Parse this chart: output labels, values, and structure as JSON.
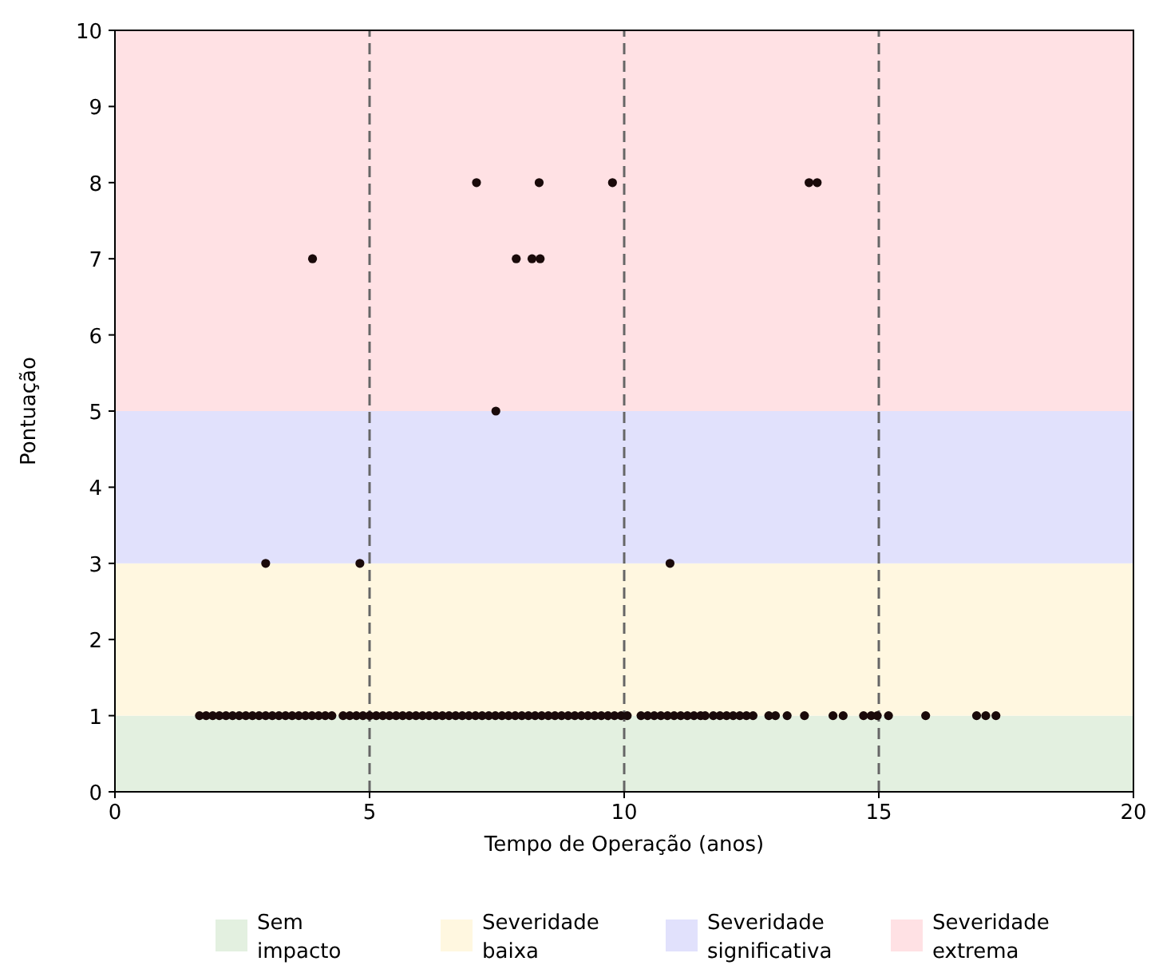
{
  "chart_data": {
    "type": "scatter",
    "xlabel": "Tempo de Operação (anos)",
    "ylabel": "Pontuação",
    "xlim": [
      0,
      20
    ],
    "xticks": [
      0,
      5,
      10,
      15,
      20
    ],
    "ylim": [
      0,
      10
    ],
    "yticks": [
      0,
      1,
      2,
      3,
      4,
      5,
      6,
      7,
      8,
      9,
      10
    ],
    "series": [
      {
        "color": "#1a0a0a",
        "x": [
          7.1,
          8.33,
          9.77,
          13.63,
          13.79,
          3.88,
          7.88,
          8.19,
          8.35,
          7.48,
          2.96,
          4.81,
          10.9,
          1.66,
          1.79,
          1.92,
          2.05,
          2.18,
          2.31,
          2.44,
          2.57,
          2.7,
          2.83,
          2.96,
          3.09,
          3.22,
          3.35,
          3.48,
          3.61,
          3.74,
          3.87,
          4.0,
          4.13,
          4.26,
          4.48,
          4.61,
          4.74,
          4.87,
          5.0,
          5.13,
          5.26,
          5.39,
          5.52,
          5.65,
          5.78,
          5.91,
          6.04,
          6.17,
          6.3,
          6.43,
          6.56,
          6.69,
          6.82,
          6.95,
          7.08,
          7.21,
          7.34,
          7.47,
          7.6,
          7.73,
          7.86,
          7.99,
          8.12,
          8.25,
          8.38,
          8.51,
          8.64,
          8.77,
          8.9,
          9.03,
          9.16,
          9.29,
          9.42,
          9.55,
          9.68,
          9.81,
          9.94,
          10.06,
          10.33,
          10.46,
          10.59,
          10.72,
          10.85,
          10.98,
          11.11,
          11.24,
          11.37,
          11.5,
          11.59,
          11.75,
          11.88,
          12.01,
          12.14,
          12.27,
          12.4,
          12.53,
          12.84,
          12.97,
          13.2,
          13.54,
          14.1,
          14.3,
          14.7,
          14.85,
          14.97,
          15.19,
          15.92,
          16.92,
          17.1,
          17.3
        ],
        "values": [
          8,
          8,
          8,
          8,
          8,
          7,
          7,
          7,
          7,
          5,
          3,
          3,
          3,
          1,
          1,
          1,
          1,
          1,
          1,
          1,
          1,
          1,
          1,
          1,
          1,
          1,
          1,
          1,
          1,
          1,
          1,
          1,
          1,
          1,
          1,
          1,
          1,
          1,
          1,
          1,
          1,
          1,
          1,
          1,
          1,
          1,
          1,
          1,
          1,
          1,
          1,
          1,
          1,
          1,
          1,
          1,
          1,
          1,
          1,
          1,
          1,
          1,
          1,
          1,
          1,
          1,
          1,
          1,
          1,
          1,
          1,
          1,
          1,
          1,
          1,
          1,
          1,
          1,
          1,
          1,
          1,
          1,
          1,
          1,
          1,
          1,
          1,
          1,
          1,
          1,
          1,
          1,
          1,
          1,
          1,
          1,
          1,
          1,
          1,
          1,
          1,
          1,
          1,
          1,
          1,
          1,
          1,
          1,
          1,
          1
        ]
      }
    ],
    "bands": [
      {
        "axis": "y",
        "from": 0,
        "to": 1,
        "label": "Sem impacto",
        "color": "#e3f0e0"
      },
      {
        "axis": "y",
        "from": 1,
        "to": 3,
        "label": "Severidade baixa",
        "color": "#fff7e0"
      },
      {
        "axis": "y",
        "from": 3,
        "to": 5,
        "label": "Severidade significativa",
        "color": "#e1e1fc"
      },
      {
        "axis": "y",
        "from": 5,
        "to": 10,
        "label": "Severidade extrema",
        "color": "#ffe1e4"
      }
    ],
    "ref_lines": [
      {
        "axis": "x",
        "value": 5,
        "color": "#666666",
        "line_style": "dashed"
      },
      {
        "axis": "x",
        "value": 10,
        "color": "#666666",
        "line_style": "dashed"
      },
      {
        "axis": "x",
        "value": 15,
        "color": "#666666",
        "line_style": "dashed"
      }
    ],
    "marker": "circle",
    "legend": "bottom",
    "grid": false
  }
}
